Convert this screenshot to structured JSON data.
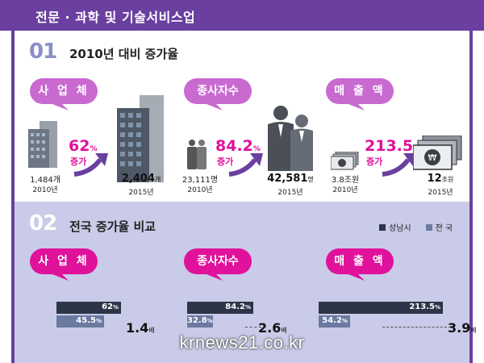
{
  "header": {
    "title": "전문 · 과학 및 기술서비스업"
  },
  "section1": {
    "number": "01",
    "title": "2010년 대비 증가율",
    "increase_label": "증가",
    "groups": [
      {
        "label": "사 업 체",
        "v2010": "1,484",
        "u2010": "개",
        "y2010": "2010년",
        "v2015": "2,404",
        "u2015": "개",
        "y2015": "2015년",
        "pct": "62",
        "pct_unit": "%",
        "icon_small": "building-icon",
        "icon_big": "building-icon"
      },
      {
        "label": "종사자수",
        "v2010": "23,111",
        "u2010": "명",
        "y2010": "2010년",
        "v2015": "42,581",
        "u2015": "명",
        "y2015": "2015년",
        "pct": "84.2",
        "pct_unit": "%",
        "icon_small": "people-icon",
        "icon_big": "people-icon"
      },
      {
        "label": "매 출 액",
        "v2010": "3.8",
        "u2010": "조원",
        "y2010": "2010년",
        "v2015": "12",
        "u2015": "조원",
        "y2015": "2015년",
        "pct": "213.5",
        "pct_unit": "%",
        "icon_small": "money-icon",
        "icon_big": "money-icon"
      }
    ]
  },
  "section2": {
    "number": "02",
    "title": "전국 증가율 비교",
    "legend": [
      {
        "name": "성남시",
        "color": "#2d3548"
      },
      {
        "name": "전 국",
        "color": "#6a7aa0"
      }
    ]
  },
  "chart_data": {
    "type": "bar",
    "categories": [
      "사 업 체",
      "종사자수",
      "매 출 액"
    ],
    "series": [
      {
        "name": "성남시",
        "values": [
          62,
          84.2,
          213.5
        ],
        "labels": [
          "62",
          "84.2",
          "213.5"
        ],
        "color": "#2d3548"
      },
      {
        "name": "전 국",
        "values": [
          45.5,
          32.8,
          54.2
        ],
        "labels": [
          "45.5",
          "32.8",
          "54.2"
        ],
        "color": "#6a7aa0"
      }
    ],
    "value_unit": "%",
    "ratios": [
      "1.4",
      "2.6",
      "3.9"
    ],
    "ratio_unit": "배"
  },
  "watermark": "krnews21.co.kr",
  "colors": {
    "header": "#6a3fa0",
    "bubble": "#c86ad0",
    "accent": "#e0119b",
    "section2_bg": "#c9cbe8",
    "num": "#8a8ec8"
  }
}
